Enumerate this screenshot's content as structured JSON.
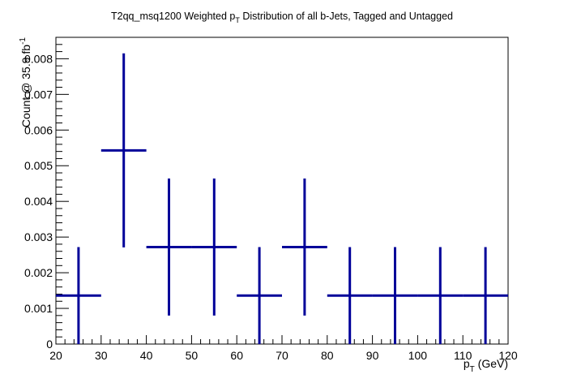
{
  "chart_data": {
    "type": "scatter",
    "style": "error-bar histogram",
    "title": {
      "before_sub": "T2qq_msq1200 Weighted p",
      "sub": "T",
      "after_sub": " Distribution of all b-Jets, Tagged and Untagged"
    },
    "xlabel": {
      "main": "p",
      "sub": "T",
      "rest": " (GeV)"
    },
    "ylabel": {
      "main": "Count @ 35.9 fb",
      "sup": "-1"
    },
    "xlim": [
      20,
      120
    ],
    "ylim": [
      0,
      0.0086
    ],
    "x_ticks": [
      "20",
      "30",
      "40",
      "50",
      "60",
      "70",
      "80",
      "90",
      "100",
      "110",
      "120"
    ],
    "y_ticks": [
      "0",
      "0.001",
      "0.002",
      "0.003",
      "0.004",
      "0.005",
      "0.006",
      "0.007",
      "0.008"
    ],
    "grid": false,
    "legend": "none",
    "series_color": "#000099",
    "points": [
      {
        "x": 25,
        "xerr": 5,
        "y": 0.00136,
        "yerr": 0.00136
      },
      {
        "x": 35,
        "xerr": 5,
        "y": 0.00543,
        "yerr": 0.00272
      },
      {
        "x": 45,
        "xerr": 5,
        "y": 0.00272,
        "yerr": 0.00192
      },
      {
        "x": 55,
        "xerr": 5,
        "y": 0.00272,
        "yerr": 0.00192
      },
      {
        "x": 65,
        "xerr": 5,
        "y": 0.00136,
        "yerr": 0.00136
      },
      {
        "x": 75,
        "xerr": 5,
        "y": 0.00272,
        "yerr": 0.00192
      },
      {
        "x": 85,
        "xerr": 5,
        "y": 0.00136,
        "yerr": 0.00136
      },
      {
        "x": 95,
        "xerr": 5,
        "y": 0.00136,
        "yerr": 0.00136
      },
      {
        "x": 105,
        "xerr": 5,
        "y": 0.00136,
        "yerr": 0.00136
      },
      {
        "x": 115,
        "xerr": 5,
        "y": 0.00136,
        "yerr": 0.00136
      }
    ]
  }
}
